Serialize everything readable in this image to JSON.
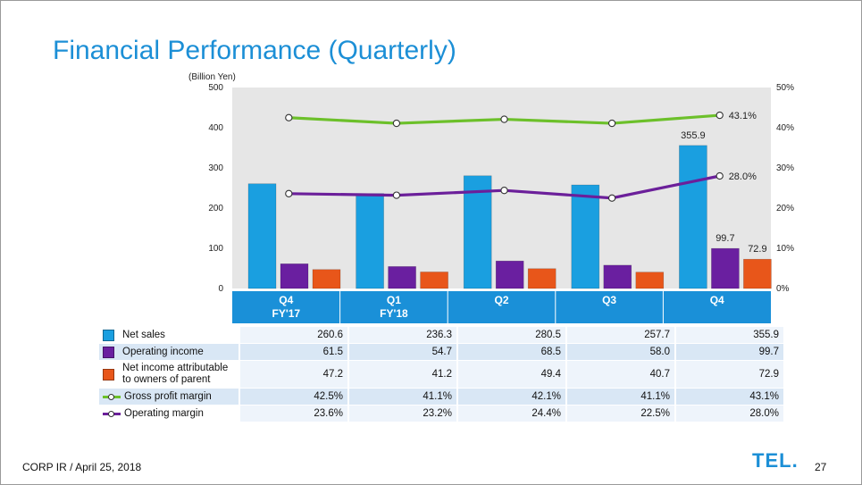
{
  "slide": {
    "title": "Financial Performance (Quarterly)",
    "footer": "CORP IR / April 25, 2018",
    "logo": "TEL",
    "page_number": "27"
  },
  "colors": {
    "title": "#1c8fd6",
    "net_sales": "#1a9fe0",
    "operating_income": "#6a1fa0",
    "net_income": "#e8561a",
    "gross_margin": "#6cc02a",
    "operating_margin": "#6b1f9a",
    "category_bar": "#1a90d8",
    "plot_bg": "#e6e6e6"
  },
  "chart_data": {
    "type": "bar",
    "unit_label": "(Billion Yen)",
    "categories": [
      {
        "line1": "Q4",
        "line2": "FY'17"
      },
      {
        "line1": "Q1",
        "line2": "FY'18"
      },
      {
        "line1": "Q2",
        "line2": ""
      },
      {
        "line1": "Q3",
        "line2": ""
      },
      {
        "line1": "Q4",
        "line2": ""
      }
    ],
    "ylim_left": [
      0,
      500
    ],
    "yticks_left": [
      "0",
      "100",
      "200",
      "300",
      "400",
      "500"
    ],
    "ylim_right": [
      0,
      50
    ],
    "yticks_right": [
      "0%",
      "10%",
      "20%",
      "30%",
      "40%",
      "50%"
    ],
    "bar_series": [
      {
        "name": "Net sales",
        "values": [
          260.6,
          236.3,
          280.5,
          257.7,
          355.9
        ],
        "display": [
          "260.6",
          "236.3",
          "280.5",
          "257.7",
          "355.9"
        ]
      },
      {
        "name": "Operating income",
        "values": [
          61.5,
          54.7,
          68.5,
          58.0,
          99.7
        ],
        "display": [
          "61.5",
          "54.7",
          "68.5",
          "58.0",
          "99.7"
        ]
      },
      {
        "name": "Net income attributable to owners of parent",
        "name_line1": "Net income attributable",
        "name_line2": "to owners of parent",
        "values": [
          47.2,
          41.2,
          49.4,
          40.7,
          72.9
        ],
        "display": [
          "47.2",
          "41.2",
          "49.4",
          "40.7",
          "72.9"
        ]
      }
    ],
    "line_series": [
      {
        "name": "Gross profit margin",
        "values": [
          42.5,
          41.1,
          42.1,
          41.1,
          43.1
        ],
        "display": [
          "42.5%",
          "41.1%",
          "42.1%",
          "41.1%",
          "43.1%"
        ]
      },
      {
        "name": "Operating margin",
        "values": [
          23.6,
          23.2,
          24.4,
          22.5,
          28.0
        ],
        "display": [
          "23.6%",
          "23.2%",
          "24.4%",
          "22.5%",
          "28.0%"
        ]
      }
    ],
    "annotations": {
      "net_sales_last": "355.9",
      "operating_income_last": "99.7",
      "net_income_last": "72.9",
      "gross_margin_last": "43.1%",
      "operating_margin_last": "28.0%"
    },
    "grid": false,
    "legend_placement": "table-left"
  }
}
